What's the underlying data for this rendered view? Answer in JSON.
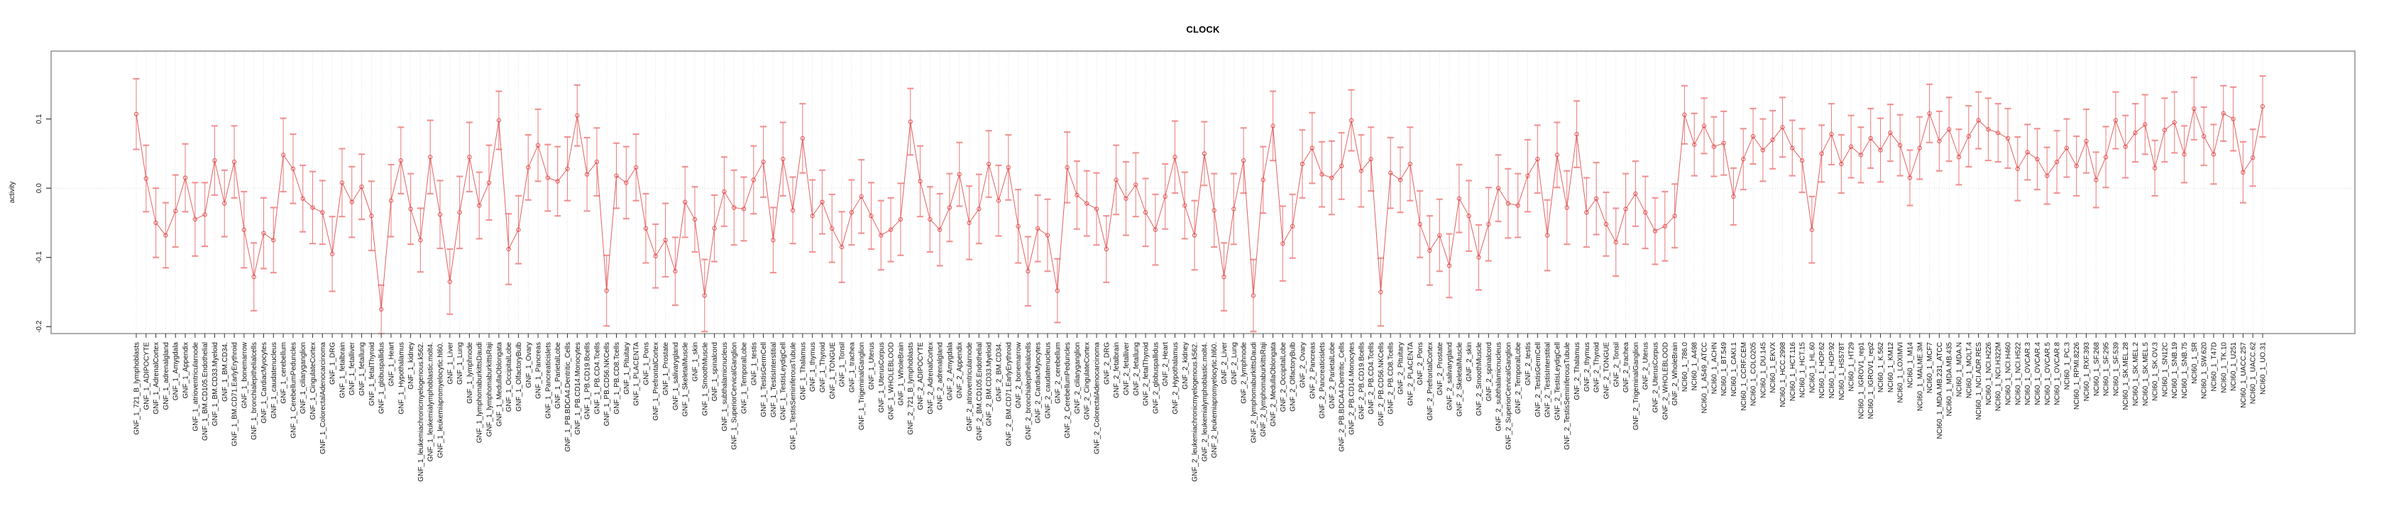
{
  "title": "CLOCK",
  "axes": {
    "y_label": "activity",
    "y_ticks": [
      0.1,
      0.0,
      -0.1,
      -0.2
    ],
    "y_tick_labels": [
      "0.1",
      "0.0",
      "-0.1",
      "-0.2"
    ]
  },
  "style": {
    "series_color": "#e05050",
    "errorbar_color": "rgba(232,96,96,0.75)",
    "errorcap_color": "rgba(240,130,130,0.85)",
    "grid_color": "#dcdcdc",
    "zero_line_color": "#cccccc",
    "frame_color": "#8a8a8a",
    "tick_color": "#333333",
    "label_color": "#111111"
  },
  "chart_data": {
    "type": "line",
    "title": "CLOCK",
    "xlabel": "",
    "ylabel": "activity",
    "ylim": [
      -0.21,
      0.198
    ],
    "grid": "vertical dotted gridline at every category; dotted horizontal line at y=0",
    "legend": "none",
    "point_style": "open red circles connected by red line, with red error bars",
    "groups": [
      {
        "name": "GNF_1",
        "count": 79
      },
      {
        "name": "GNF_2",
        "count": 79
      },
      {
        "name": "NCI60_1",
        "count": 60
      }
    ],
    "categories": [
      "GNF_1_721_B_lymphoblasts",
      "GNF_1_ADIPOCYTE",
      "GNF_1_AdrenalCortex",
      "GNF_1_adrenalgland",
      "GNF_1_Amygdala",
      "GNF_1_Appendix",
      "GNF_1_atrioventricularnode",
      "GNF_1_BM.CD105.Endothelial",
      "GNF_1_BM.CD33.Myeloid",
      "GNF_1_BM.CD34.",
      "GNF_1_BM.CD71.EarlyErythroid",
      "GNF_1_bonemarrow",
      "GNF_1_bronchialepithelialcells",
      "GNF_1_CardiacMyocytes",
      "GNF_1_caudatenucleus",
      "GNF_1_cerebellum",
      "GNF_1_CerebellumPeduncles",
      "GNF_1_ciliaryganglion",
      "GNF_1_CingulateCortex",
      "GNF_1_ColorectalAdenocarcinoma",
      "GNF_1_DRG",
      "GNF_1_fetalbrain",
      "GNF_1_fetalliver",
      "GNF_1_fetallung",
      "GNF_1_fetalThyroid",
      "GNF_1_globuspallidus",
      "GNF_1_Heart",
      "GNF_1_Hypothalamus",
      "GNF_1_kidney",
      "GNF_1_leukemiachronicmyelogenous.k562.",
      "GNF_1_leukemialymphoblastic.molt4.",
      "GNF_1_leukemiapromyelocytic.hl60.",
      "GNF_1_Liver",
      "GNF_1_Lung",
      "GNF_1_lymphnode",
      "GNF_1_lymphomaburkittsDaudi",
      "GNF_1_lymphomaburkittsRaji",
      "GNF_1_MedullaOblongata",
      "GNF_1_OccipitalLobe",
      "GNF_1_OlfactoryBulb",
      "GNF_1_Ovary",
      "GNF_1_Pancreas",
      "GNF_1_Pancreaticislets",
      "GNF_1_ParietalLobe",
      "GNF_1_PB.BDCA4.Dentritic_Cells",
      "GNF_1_PB.CD14.Monocytes",
      "GNF_1_PB.CD19.Bcells",
      "GNF_1_PB.CD4.Tcells",
      "GNF_1_PB.CD56.NKCells",
      "GNF_1_PB.CD8.Tcells",
      "GNF_1_Pituitary",
      "GNF_1_PLACENTA",
      "GNF_1_Pons",
      "GNF_1_PrefrontalCortex",
      "GNF_1_Prostate",
      "GNF_1_salivarygland",
      "GNF_1_SkeletalMuscle",
      "GNF_1_skin",
      "GNF_1_SmoothMuscle",
      "GNF_1_spinalcord",
      "GNF_1_subthalamicnucleus",
      "GNF_1_SuperiorCervicalGanglion",
      "GNF_1_TemporalLobe",
      "GNF_1_testis",
      "GNF_1_TestisGermCell",
      "GNF_1_TestisInterstitial",
      "GNF_1_TestisLeydigCell",
      "GNF_1_TestisSeminiferousTubule",
      "GNF_1_Thalamus",
      "GNF_1_thymus",
      "GNF_1_Thyroid",
      "GNF_1_TONGUE",
      "GNF_1_Tonsil",
      "GNF_1_trachea",
      "GNF_1_TrigeminalGanglion",
      "GNF_1_Uterus",
      "GNF_1_UterusCorpus",
      "GNF_1_WHOLEBLOOD",
      "GNF_1_WholeBrain",
      "GNF_2_721_B_lymphoblasts",
      "GNF_2_ADIPOCYTE",
      "GNF_2_AdrenalCortex",
      "GNF_2_adrenalgland",
      "GNF_2_Amygdala",
      "GNF_2_Appendix",
      "GNF_2_atrioventricularnode",
      "GNF_2_BM.CD105.Endothelial",
      "GNF_2_BM.CD33.Myeloid",
      "GNF_2_BM.CD34.",
      "GNF_2_BM.CD71.EarlyErythroid",
      "GNF_2_bonemarrow",
      "GNF_2_bronchialepithelialcells",
      "GNF_2_CardiacMyocytes",
      "GNF_2_caudatenucleus",
      "GNF_2_cerebellum",
      "GNF_2_CerebellumPeduncles",
      "GNF_2_ciliaryganglion",
      "GNF_2_CingulateCortex",
      "GNF_2_ColorectalAdenocarcinoma",
      "GNF_2_DRG",
      "GNF_2_fetalbrain",
      "GNF_2_fetalliver",
      "GNF_2_fetallung",
      "GNF_2_fetalThyroid",
      "GNF_2_globuspallidus",
      "GNF_2_Heart",
      "GNF_2_Hypothalamus",
      "GNF_2_kidney",
      "GNF_2_leukemiachronicmyelogenous.k562.",
      "GNF_2_leukemialymphoblastic.molt4.",
      "GNF_2_leukemiapromyelocytic.hl60.",
      "GNF_2_Liver",
      "GNF_2_Lung",
      "GNF_2_lymphnode",
      "GNF_2_lymphomaburkittsDaudi",
      "GNF_2_lymphomaburkittsRaji",
      "GNF_2_MedullaOblongata",
      "GNF_2_OccipitalLobe",
      "GNF_2_OlfactoryBulb",
      "GNF_2_Ovary",
      "GNF_2_Pancreas",
      "GNF_2_Pancreaticislets",
      "GNF_2_ParietalLobe",
      "GNF_2_PB.BDCA4.Dentritic_Cells",
      "GNF_2_PB.CD14.Monocytes",
      "GNF_2_PB.CD19.Bcells",
      "GNF_2_PB.CD4.Tcells",
      "GNF_2_PB.CD56.NKCells",
      "GNF_2_PB.CD8.Tcells",
      "GNF_2_Pituitary",
      "GNF_2_PLACENTA",
      "GNF_2_Pons",
      "GNF_2_PrefrontalCortex",
      "GNF_2_Prostate",
      "GNF_2_salivarygland",
      "GNF_2_SkeletalMuscle",
      "GNF_2_skin",
      "GNF_2_SmoothMuscle",
      "GNF_2_spinalcord",
      "GNF_2_subthalamicnucleus",
      "GNF_2_SuperiorCervicalGanglion",
      "GNF_2_TemporalLobe",
      "GNF_2_testis",
      "GNF_2_TestisGermCell",
      "GNF_2_TestisInterstitial",
      "GNF_2_TestisLeydigCell",
      "GNF_2_TestisSeminiferousTubule",
      "GNF_2_Thalamus",
      "GNF_2_thymus",
      "GNF_2_Thyroid",
      "GNF_2_TONGUE",
      "GNF_2_Tonsil",
      "GNF_2_trachea",
      "GNF_2_TrigeminalGanglion",
      "GNF_2_Uterus",
      "GNF_2_UterusCorpus",
      "GNF_2_WHOLEBLOOD",
      "GNF_2_WholeBrain",
      "NCI60_1_786.0",
      "NCI60_1_A498",
      "NCI60_1_A549_ATCC",
      "NCI60_1_ACHN",
      "NCI60_1_BT.549",
      "NCI60_1_CAKI.1",
      "NCI60_1_CCRF.CEM",
      "NCI60_1_COLO205",
      "NCI60_1_DU.145",
      "NCI60_1_EKVX",
      "NCI60_1_HCC.2998",
      "NCI60_1_HCT.116",
      "NCI60_1_HCT.15",
      "NCI60_1_HL.60",
      "NCI60_1_HOP.62",
      "NCI60_1_HOP.92",
      "NCI60_1_HS578T",
      "NCI60_1_HT29",
      "NCI60_1_IGROV1_rep1",
      "NCI60_1_IGROV1_rep2",
      "NCI60_1_K.562",
      "NCI60_1_KM12",
      "NCI60_1_LOXIMVI",
      "NCI60_1_M14",
      "NCI60_1_MALME.3M",
      "NCI60_1_MCF7",
      "NCI60_1_MDA.MB.231_ATCC",
      "NCI60_1_MDA.MB.435",
      "NCI60_1_MDA.N",
      "NCI60_1_MOLT.4",
      "NCI60_1_NCI.ADR.RES",
      "NCI60_1_NCI.H226",
      "NCI60_1_NCI.H322M",
      "NCI60_1_NCI.H460",
      "NCI60_1_NCI.H522",
      "NCI60_1_OVCAR.3",
      "NCI60_1_OVCAR.4",
      "NCI60_1_OVCAR.5",
      "NCI60_1_OVCAR.8",
      "NCI60_1_PC.3",
      "NCI60_1_RPMI.8226",
      "NCI60_1_RXF.393",
      "NCI60_1_SF.268",
      "NCI60_1_SF.295",
      "NCI60_1_SF.539",
      "NCI60_1_SK.MEL.28",
      "NCI60_1_SK.MEL.2",
      "NCI60_1_SK.MEL.5",
      "NCI60_1_SK.OV.3",
      "NCI60_1_SN12C",
      "NCI60_1_SNB.19",
      "NCI60_1_SNB.75",
      "NCI60_1_SR",
      "NCI60_1_SW.620",
      "NCI60_1_T47D",
      "NCI60_1_TK.10",
      "NCI60_1_U251",
      "NCI60_1_UACC.257",
      "NCI60_1_UACC.62",
      "NCI60_1_UO.31"
    ],
    "values": [
      0.107,
      0.014,
      -0.05,
      -0.068,
      -0.033,
      0.015,
      -0.045,
      -0.038,
      0.04,
      -0.022,
      0.038,
      -0.06,
      -0.128,
      -0.065,
      -0.075,
      0.048,
      0.028,
      -0.015,
      -0.028,
      -0.035,
      -0.095,
      0.008,
      -0.02,
      0.002,
      -0.04,
      -0.175,
      -0.018,
      0.04,
      -0.03,
      -0.075,
      0.045,
      -0.038,
      -0.135,
      -0.035,
      0.045,
      -0.025,
      0.008,
      0.098,
      -0.088,
      -0.06,
      0.03,
      0.062,
      0.015,
      0.01,
      0.028,
      0.105,
      0.02,
      0.038,
      -0.148,
      0.018,
      0.008,
      0.03,
      -0.058,
      -0.098,
      -0.075,
      -0.12,
      -0.02,
      -0.045,
      -0.155,
      -0.058,
      -0.005,
      -0.028,
      -0.03,
      0.012,
      0.038,
      -0.075,
      0.042,
      -0.032,
      0.072,
      -0.04,
      -0.02,
      -0.058,
      -0.085,
      -0.035,
      -0.012,
      -0.04,
      -0.068,
      -0.06,
      -0.045,
      0.096,
      0.01,
      -0.045,
      -0.06,
      -0.028,
      0.02,
      -0.05,
      -0.03,
      0.035,
      -0.018,
      0.03,
      -0.055,
      -0.12,
      -0.058,
      -0.068,
      -0.148,
      0.03,
      -0.01,
      -0.022,
      -0.03,
      -0.088,
      0.012,
      -0.015,
      0.005,
      -0.035,
      -0.06,
      -0.012,
      0.045,
      -0.025,
      -0.068,
      0.05,
      -0.032,
      -0.128,
      -0.03,
      0.04,
      -0.155,
      0.012,
      0.09,
      -0.08,
      -0.055,
      0.035,
      0.058,
      0.02,
      0.015,
      0.032,
      0.098,
      0.025,
      0.042,
      -0.15,
      0.022,
      0.012,
      0.035,
      -0.052,
      -0.09,
      -0.068,
      -0.112,
      -0.015,
      -0.04,
      -0.1,
      -0.052,
      0.0,
      -0.022,
      -0.025,
      0.018,
      0.042,
      -0.068,
      0.048,
      -0.028,
      0.078,
      -0.035,
      -0.015,
      -0.052,
      -0.078,
      -0.03,
      -0.008,
      -0.035,
      -0.062,
      -0.055,
      -0.04,
      0.106,
      0.063,
      0.09,
      0.06,
      0.065,
      -0.012,
      0.042,
      0.075,
      0.055,
      0.07,
      0.088,
      0.058,
      0.04,
      -0.06,
      0.05,
      0.078,
      0.035,
      0.06,
      0.048,
      0.072,
      0.055,
      0.08,
      0.062,
      0.015,
      0.058,
      0.108,
      0.068,
      0.085,
      0.045,
      0.075,
      0.098,
      0.085,
      0.08,
      0.072,
      0.028,
      0.052,
      0.042,
      0.018,
      0.038,
      0.058,
      0.032,
      0.068,
      0.012,
      0.045,
      0.098,
      0.06,
      0.08,
      0.092,
      0.029,
      0.084,
      0.095,
      0.049,
      0.115,
      0.075,
      0.049,
      0.108,
      0.1,
      0.023,
      0.044,
      0.118
    ],
    "errors": [
      0.051,
      0.048,
      0.05,
      0.047,
      0.052,
      0.049,
      0.053,
      0.046,
      0.05,
      0.048,
      0.052,
      0.055,
      0.049,
      0.051,
      0.047,
      0.053,
      0.05,
      0.048,
      0.052,
      0.046,
      0.054,
      0.049,
      0.051,
      0.047,
      0.05,
      0.035,
      0.052,
      0.048,
      0.051,
      0.046,
      0.053,
      0.049,
      0.047,
      0.052,
      0.05,
      0.048,
      0.054,
      0.042,
      0.051,
      0.049,
      0.047,
      0.052,
      0.048,
      0.05,
      0.046,
      0.044,
      0.053,
      0.049,
      0.051,
      0.047,
      0.052,
      0.048,
      0.05,
      0.046,
      0.053,
      0.049,
      0.051,
      0.047,
      0.052,
      0.048,
      0.05,
      0.054,
      0.046,
      0.049,
      0.051,
      0.047,
      0.053,
      0.048,
      0.05,
      0.052,
      0.046,
      0.049,
      0.051,
      0.047,
      0.053,
      0.048,
      0.05,
      0.046,
      0.052,
      0.048,
      0.051,
      0.047,
      0.052,
      0.049,
      0.046,
      0.053,
      0.05,
      0.048,
      0.051,
      0.047,
      0.053,
      0.05,
      0.048,
      0.052,
      0.046,
      0.051,
      0.049,
      0.047,
      0.052,
      0.048,
      0.05,
      0.053,
      0.046,
      0.049,
      0.051,
      0.047,
      0.052,
      0.048,
      0.05,
      0.046,
      0.053,
      0.049,
      0.051,
      0.047,
      0.052,
      0.048,
      0.05,
      0.054,
      0.046,
      0.049,
      0.051,
      0.047,
      0.053,
      0.048,
      0.044,
      0.052,
      0.046,
      0.049,
      0.051,
      0.047,
      0.053,
      0.048,
      0.05,
      0.052,
      0.046,
      0.049,
      0.051,
      0.047,
      0.053,
      0.048,
      0.05,
      0.046,
      0.052,
      0.049,
      0.051,
      0.047,
      0.053,
      0.048,
      0.05,
      0.052,
      0.046,
      0.049,
      0.051,
      0.047,
      0.052,
      0.048,
      0.05,
      0.046,
      0.042,
      0.045,
      0.04,
      0.043,
      0.046,
      0.041,
      0.044,
      0.04,
      0.045,
      0.042,
      0.043,
      0.04,
      0.046,
      0.048,
      0.041,
      0.044,
      0.042,
      0.045,
      0.04,
      0.043,
      0.046,
      0.041,
      0.044,
      0.04,
      0.045,
      0.042,
      0.043,
      0.046,
      0.04,
      0.044,
      0.041,
      0.045,
      0.042,
      0.043,
      0.046,
      0.04,
      0.044,
      0.041,
      0.045,
      0.042,
      0.043,
      0.046,
      0.04,
      0.044,
      0.041,
      0.045,
      0.042,
      0.043,
      0.04,
      0.046,
      0.044,
      0.041,
      0.045,
      0.042,
      0.043,
      0.04,
      0.046,
      0.044,
      0.041,
      0.044
    ]
  }
}
